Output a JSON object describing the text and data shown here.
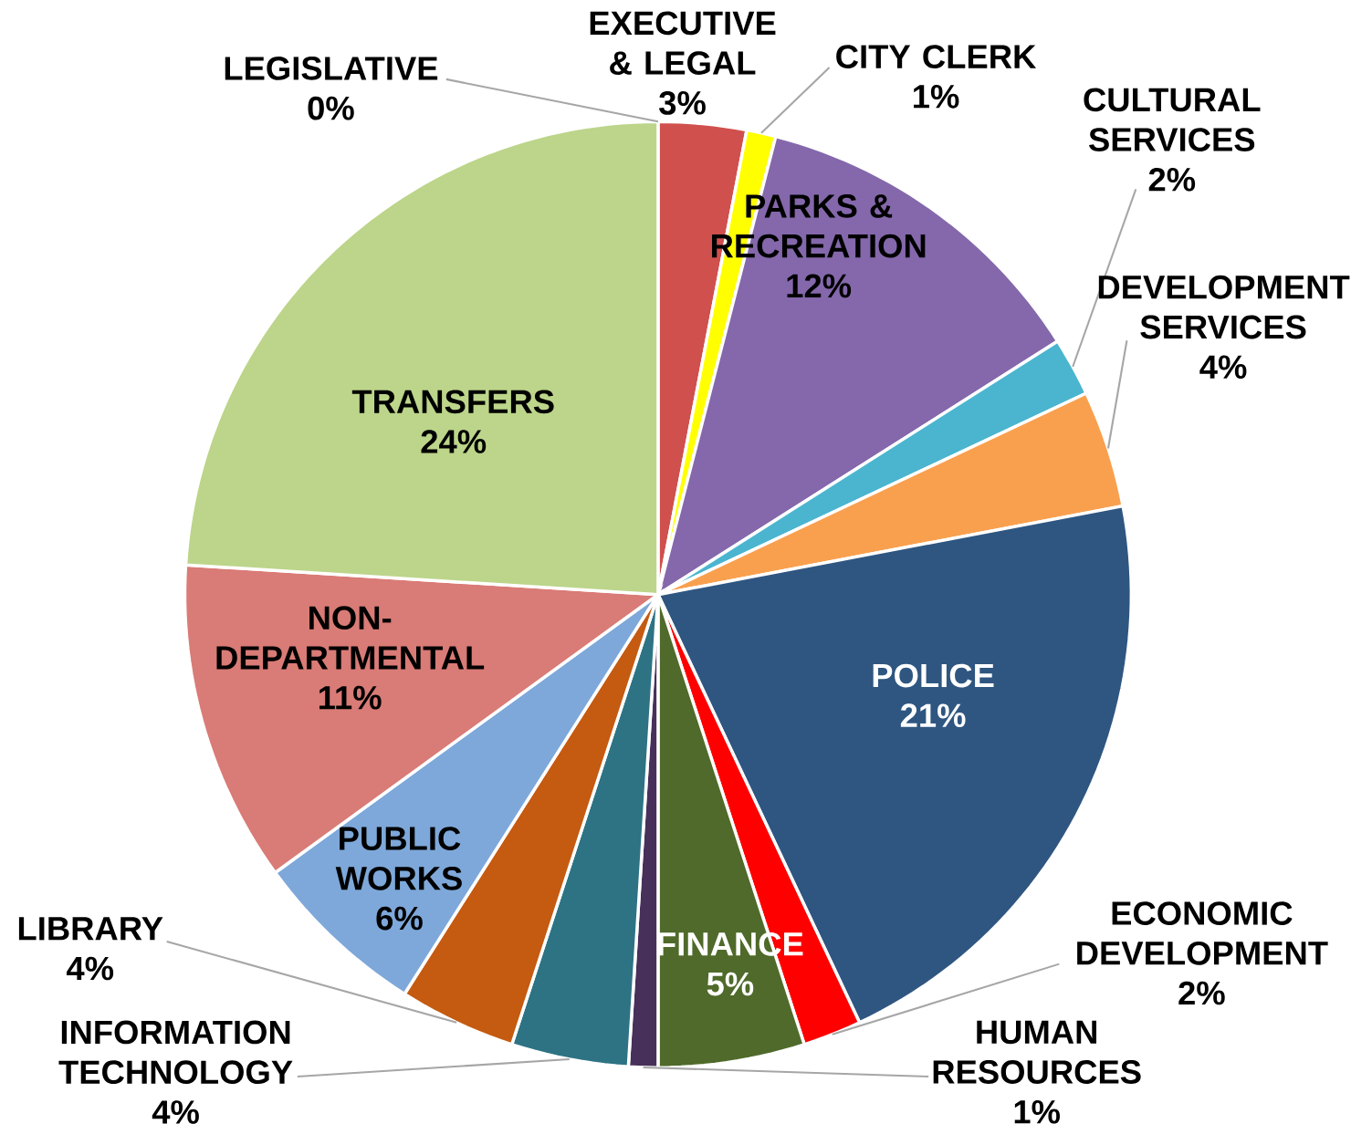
{
  "chart_data": {
    "type": "pie",
    "categories": [
      "EXECUTIVE & LEGAL",
      "CITY CLERK",
      "PARKS & RECREATION",
      "CULTURAL SERVICES",
      "DEVELOPMENT SERVICES",
      "POLICE",
      "ECONOMIC DEVELOPMENT",
      "FINANCE",
      "HUMAN RESOURCES",
      "INFORMATION TECHNOLOGY",
      "LIBRARY",
      "PUBLIC WORKS",
      "NON-DEPARTMENTAL",
      "TRANSFERS",
      "LEGISLATIVE"
    ],
    "values": [
      3,
      1,
      12,
      2,
      4,
      21,
      2,
      5,
      1,
      4,
      4,
      6,
      11,
      24,
      0
    ],
    "value_labels": [
      "3%",
      "1%",
      "12%",
      "2%",
      "4%",
      "21%",
      "2%",
      "5%",
      "1%",
      "4%",
      "4%",
      "6%",
      "11%",
      "24%",
      "0%"
    ],
    "colors": [
      "#d0504d",
      "#ffff00",
      "#8468ab",
      "#4bb5cf",
      "#f9a04f",
      "#2f5681",
      "#ff0000",
      "#4f6a2a",
      "#47305a",
      "#2d7384",
      "#c55a11",
      "#7ea8da",
      "#d97b76",
      "#bcd58a",
      "#a6a6a6"
    ]
  }
}
